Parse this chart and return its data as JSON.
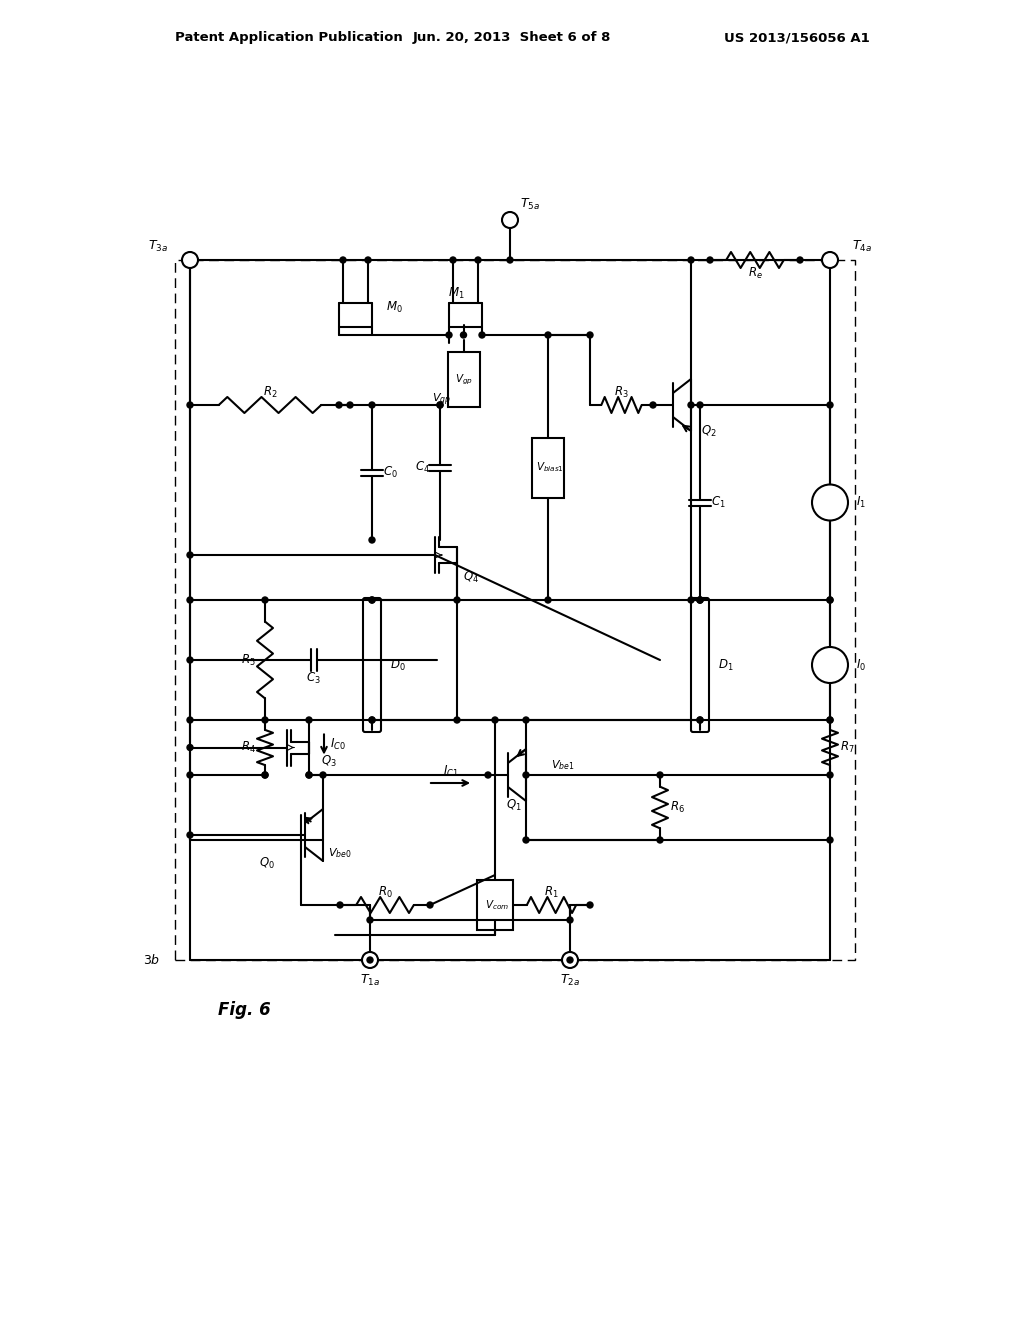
{
  "header_left": "Patent Application Publication",
  "header_center": "Jun. 20, 2013  Sheet 6 of 8",
  "header_right": "US 2013/156056 A1",
  "fig_label": "Fig. 6",
  "bg": "#ffffff",
  "lc": "#000000",
  "lw": 1.5
}
